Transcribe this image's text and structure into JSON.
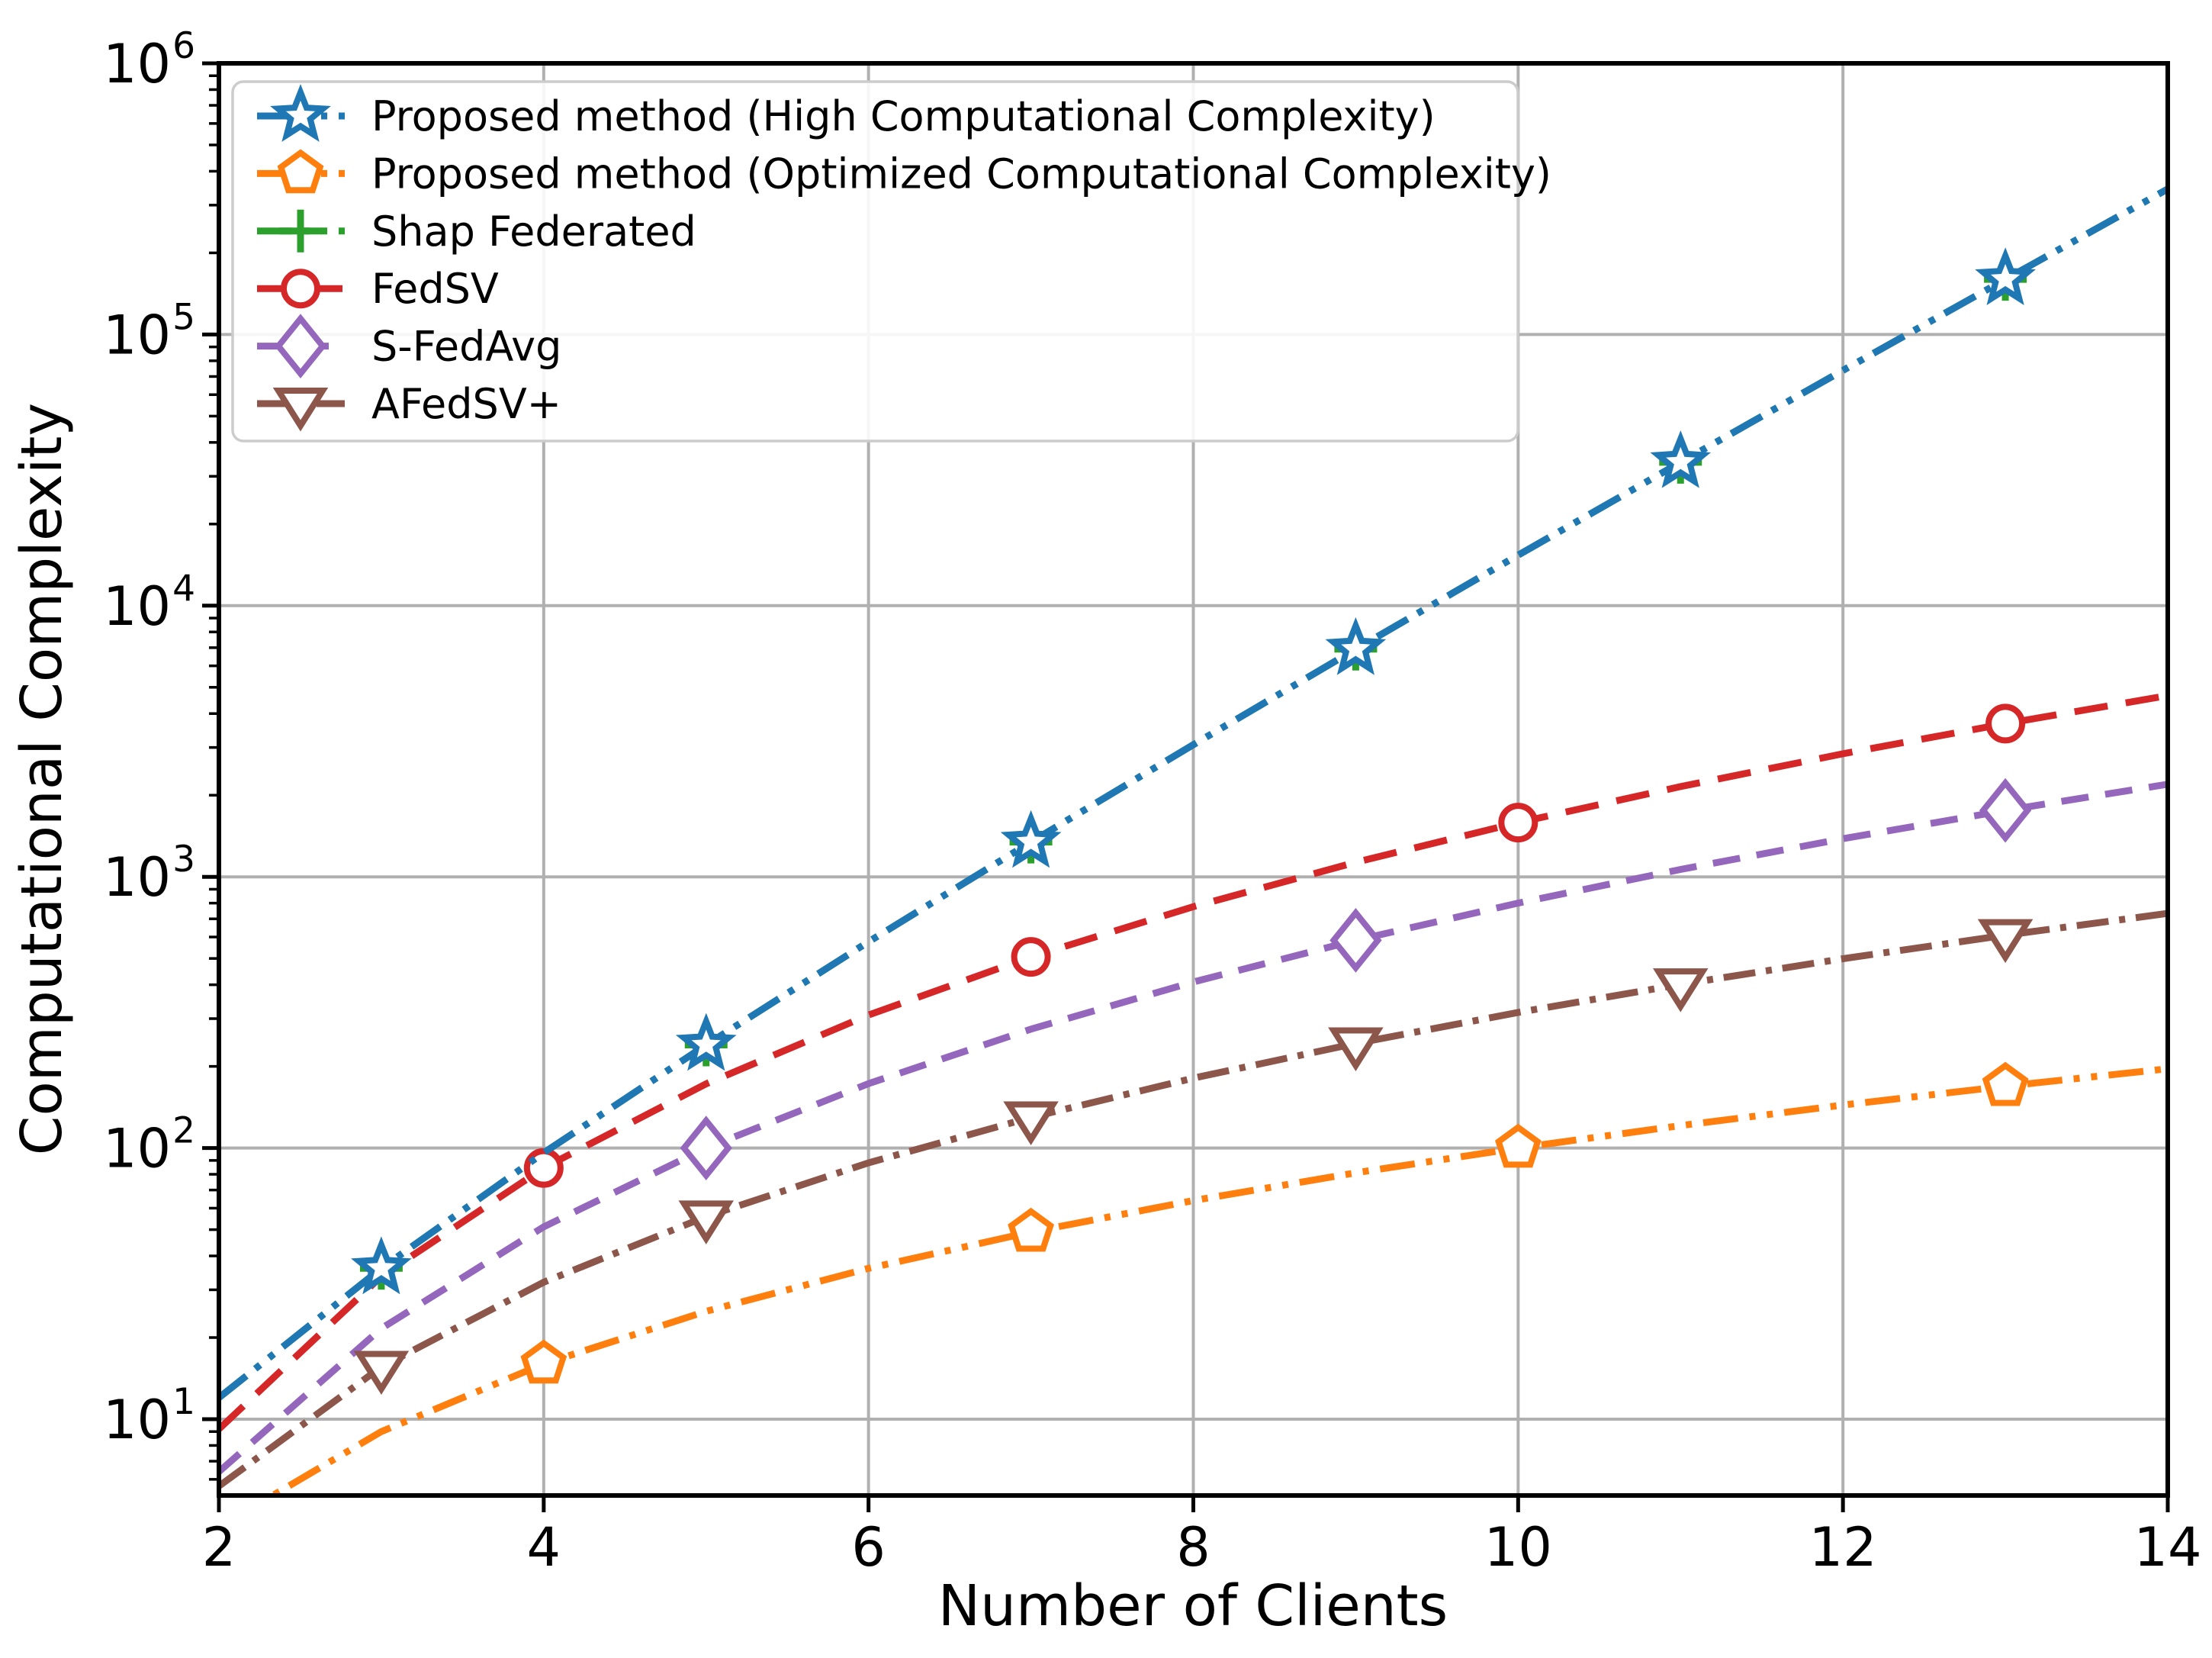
{
  "figure": {
    "background": "#ffffff",
    "grid_color": "#b0b0b0",
    "spine_color": "#000000",
    "legend_edge_color": "#cccccc"
  },
  "chart_data": {
    "type": "line",
    "title": "",
    "xlabel": "Number of Clients",
    "ylabel": "Computational Complexity",
    "yscale": "log",
    "xlim": [
      2,
      14
    ],
    "ylim": [
      5.2,
      1000000
    ],
    "x_ticks": [
      2,
      4,
      6,
      8,
      10,
      12,
      14
    ],
    "y_tick_exponents": [
      1,
      2,
      3,
      4,
      5,
      6
    ],
    "grid": true,
    "legend_position": "upper left",
    "x": [
      2,
      3,
      4,
      5,
      6,
      7,
      8,
      9,
      10,
      11,
      12,
      13,
      14
    ],
    "series": [
      {
        "label": "Proposed method (High Computational Complexity)",
        "color": "#1f77b4",
        "marker": "star",
        "linestyle": "dashdotdot",
        "values": [
          12,
          36,
          96,
          240,
          576,
          1344,
          3072,
          6912,
          15360,
          33792,
          73728,
          159744,
          344064
        ],
        "markers_at": [
          3,
          5,
          7,
          9,
          11,
          13
        ]
      },
      {
        "label": "Proposed method (Optimized Computational Complexity)",
        "color": "#ff7f0e",
        "marker": "pentagon",
        "linestyle": "dashdotdot",
        "values": [
          4,
          9,
          16,
          25,
          36,
          49,
          64,
          81,
          100,
          121,
          144,
          169,
          196
        ],
        "markers_at": [
          4,
          7,
          10,
          13
        ]
      },
      {
        "label": "Shap Federated",
        "color": "#2ca02c",
        "marker": "plus",
        "linestyle": "dashdotdot",
        "values": [
          12,
          36,
          96,
          240,
          576,
          1344,
          3072,
          6912,
          15360,
          33792,
          73728,
          159744,
          344064
        ],
        "markers_at": [
          3,
          5,
          7,
          9,
          11,
          13
        ]
      },
      {
        "label": "FedSV",
        "color": "#d62728",
        "marker": "circle",
        "linestyle": "dashed",
        "values": [
          9.19,
          33.63,
          84.45,
          172.47,
          309.25,
          506.82,
          776.05,
          1131.6,
          1584.89,
          2151.56,
          2843.49,
          3672.77,
          4657.95
        ],
        "markers_at": [
          4,
          7,
          10,
          13
        ]
      },
      {
        "label": "S-FedAvg",
        "color": "#9467bd",
        "marker": "diamond",
        "linestyle": "dashed",
        "values": [
          6.4,
          21.6,
          51.2,
          100,
          172.8,
          274.4,
          409.6,
          583.2,
          800,
          1064.8,
          1382.4,
          1757.6,
          2195.2
        ],
        "markers_at": [
          5,
          9,
          13
        ]
      },
      {
        "label": "AFedSV+",
        "color": "#8c564b",
        "marker": "triangle-down",
        "linestyle": "dashdot",
        "values": [
          5.66,
          15.59,
          32,
          55.9,
          88.18,
          129.64,
          181.02,
          243,
          316.23,
          401.31,
          498.83,
          609.34,
          733.36
        ],
        "markers_at": [
          3,
          5,
          7,
          9,
          11,
          13
        ]
      }
    ]
  }
}
